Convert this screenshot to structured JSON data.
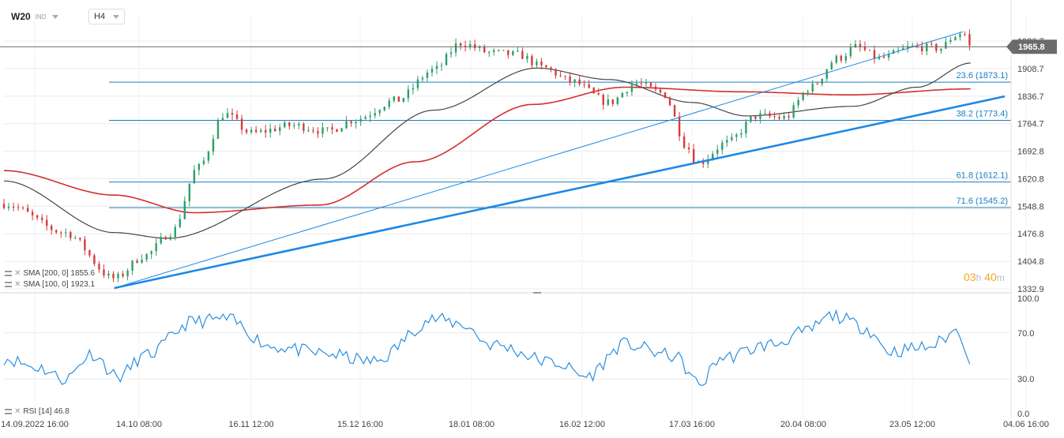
{
  "header": {
    "symbol": "W20",
    "market": "IND",
    "timeframe": "H4"
  },
  "timer": {
    "hours": "03",
    "h_unit": "h",
    "minutes": "40",
    "m_unit": "m"
  },
  "price_axis": {
    "ticks": [
      1980.7,
      1908.7,
      1836.7,
      1764.7,
      1692.8,
      1620.8,
      1548.8,
      1476.8,
      1404.8,
      1332.9
    ],
    "tick_labels": [
      "1980.7",
      "1908.7",
      "1836.7",
      "1764.7",
      "1692.8",
      "1620.8",
      "1548.8",
      "1476.8",
      "1404.8",
      "1332.9"
    ],
    "current_price": 1965.8,
    "current_price_label": "1965.8"
  },
  "time_axis": {
    "labels": [
      "14.09.2022 16:00",
      "14.10 08:00",
      "16.11 12:00",
      "15.12 16:00",
      "18.01 08:00",
      "16.02 12:00",
      "17.03 16:00",
      "20.04 08:00",
      "23.05 12:00",
      "04.06 16:00"
    ]
  },
  "indicators": {
    "sma200": {
      "label": "SMA [200, 0] 1855.6",
      "color": "#d32f2f"
    },
    "sma100": {
      "label": "SMA [100, 0] 1923.1",
      "color": "#444444"
    },
    "rsi": {
      "label": "RSI [14] 46.8",
      "color": "#2a8fe0",
      "levels": [
        100.0,
        70.0,
        30.0,
        0.0
      ],
      "level_labels": [
        "100.0",
        "70.0",
        "30.0",
        "0.0"
      ]
    }
  },
  "fib_levels": [
    {
      "label": "23.6 (1873.1)",
      "value": 1873.1
    },
    {
      "label": "38.2 (1773.4)",
      "value": 1773.4
    },
    {
      "label": "61.8 (1612.1)",
      "value": 1612.1
    },
    {
      "label": "71.6 (1545.2)",
      "value": 1545.2
    }
  ],
  "colors": {
    "up": "#2e9e6a",
    "down": "#d83a3a",
    "fib": "#1a7fc1",
    "trend": "#1e88e5",
    "grid": "#ececec"
  },
  "chart_data": {
    "type": "candlestick",
    "x_range": [
      "14.09.2022",
      "04.06.2023"
    ],
    "ylim": [
      1332.9,
      2000
    ],
    "grid": true,
    "price_path_keypoints": [
      {
        "x": "14.09",
        "y": 1555
      },
      {
        "x": "30.09",
        "y": 1480
      },
      {
        "x": "13.10",
        "y": 1360
      },
      {
        "x": "21.10",
        "y": 1420
      },
      {
        "x": "28.10",
        "y": 1480
      },
      {
        "x": "04.11",
        "y": 1650
      },
      {
        "x": "11.11",
        "y": 1790
      },
      {
        "x": "18.11",
        "y": 1740
      },
      {
        "x": "29.11",
        "y": 1760
      },
      {
        "x": "08.12",
        "y": 1745
      },
      {
        "x": "15.12",
        "y": 1775
      },
      {
        "x": "26.12",
        "y": 1825
      },
      {
        "x": "05.01",
        "y": 1905
      },
      {
        "x": "12.01",
        "y": 1975
      },
      {
        "x": "20.01",
        "y": 1950
      },
      {
        "x": "27.01",
        "y": 1945
      },
      {
        "x": "03.02",
        "y": 1910
      },
      {
        "x": "10.02",
        "y": 1875
      },
      {
        "x": "20.02",
        "y": 1820
      },
      {
        "x": "27.02",
        "y": 1870
      },
      {
        "x": "06.03",
        "y": 1845
      },
      {
        "x": "13.03",
        "y": 1700
      },
      {
        "x": "15.03",
        "y": 1660
      },
      {
        "x": "23.03",
        "y": 1715
      },
      {
        "x": "31.03",
        "y": 1785
      },
      {
        "x": "07.04",
        "y": 1780
      },
      {
        "x": "14.04",
        "y": 1860
      },
      {
        "x": "21.04",
        "y": 1935
      },
      {
        "x": "26.04",
        "y": 1965
      },
      {
        "x": "02.05",
        "y": 1935
      },
      {
        "x": "11.05",
        "y": 1965
      },
      {
        "x": "18.05",
        "y": 1962
      },
      {
        "x": "22.05",
        "y": 1995
      },
      {
        "x": "24.05",
        "y": 2005
      },
      {
        "x": "26.05",
        "y": 1965
      }
    ],
    "sma100_keypoints": [
      {
        "x": "14.09",
        "y": 1615
      },
      {
        "x": "13.10",
        "y": 1480
      },
      {
        "x": "27.10",
        "y": 1465
      },
      {
        "x": "07.12",
        "y": 1620
      },
      {
        "x": "05.01",
        "y": 1800
      },
      {
        "x": "01.02",
        "y": 1910
      },
      {
        "x": "20.02",
        "y": 1880
      },
      {
        "x": "14.03",
        "y": 1820
      },
      {
        "x": "28.03",
        "y": 1785
      },
      {
        "x": "25.04",
        "y": 1810
      },
      {
        "x": "12.05",
        "y": 1860
      },
      {
        "x": "26.05",
        "y": 1923.1
      }
    ],
    "sma200_keypoints": [
      {
        "x": "14.09",
        "y": 1642
      },
      {
        "x": "13.10",
        "y": 1578
      },
      {
        "x": "03.11",
        "y": 1532
      },
      {
        "x": "06.12",
        "y": 1552
      },
      {
        "x": "31.12",
        "y": 1665
      },
      {
        "x": "31.01",
        "y": 1815
      },
      {
        "x": "24.02",
        "y": 1860
      },
      {
        "x": "27.03",
        "y": 1848
      },
      {
        "x": "24.04",
        "y": 1840
      },
      {
        "x": "26.05",
        "y": 1855.6
      }
    ],
    "rsi_keypoints": [
      {
        "x": "14.09",
        "y": 48
      },
      {
        "x": "23.09",
        "y": 40
      },
      {
        "x": "30.09",
        "y": 30
      },
      {
        "x": "07.10",
        "y": 52
      },
      {
        "x": "14.10",
        "y": 32
      },
      {
        "x": "21.10",
        "y": 50
      },
      {
        "x": "03.11",
        "y": 80
      },
      {
        "x": "11.11",
        "y": 82
      },
      {
        "x": "24.11",
        "y": 58
      },
      {
        "x": "07.12",
        "y": 52
      },
      {
        "x": "20.12",
        "y": 45
      },
      {
        "x": "05.01",
        "y": 82
      },
      {
        "x": "12.01",
        "y": 78
      },
      {
        "x": "20.01",
        "y": 60
      },
      {
        "x": "06.02",
        "y": 44
      },
      {
        "x": "14.02",
        "y": 32
      },
      {
        "x": "24.02",
        "y": 60
      },
      {
        "x": "09.03",
        "y": 50
      },
      {
        "x": "16.03",
        "y": 25
      },
      {
        "x": "21.03",
        "y": 48
      },
      {
        "x": "04.04",
        "y": 60
      },
      {
        "x": "12.04",
        "y": 70
      },
      {
        "x": "20.04",
        "y": 85
      },
      {
        "x": "28.04",
        "y": 75
      },
      {
        "x": "05.05",
        "y": 54
      },
      {
        "x": "15.05",
        "y": 58
      },
      {
        "x": "23.05",
        "y": 72
      },
      {
        "x": "25.05",
        "y": 55
      },
      {
        "x": "26.05",
        "y": 46.8
      }
    ],
    "trendlines": [
      {
        "from": {
          "x": "13.10",
          "y": 1335
        },
        "to": {
          "x": "04.06",
          "y": 1836
        }
      },
      {
        "from": {
          "x": "13.10",
          "y": 1335
        },
        "to": {
          "x": "24.05",
          "y": 2005
        }
      }
    ]
  }
}
